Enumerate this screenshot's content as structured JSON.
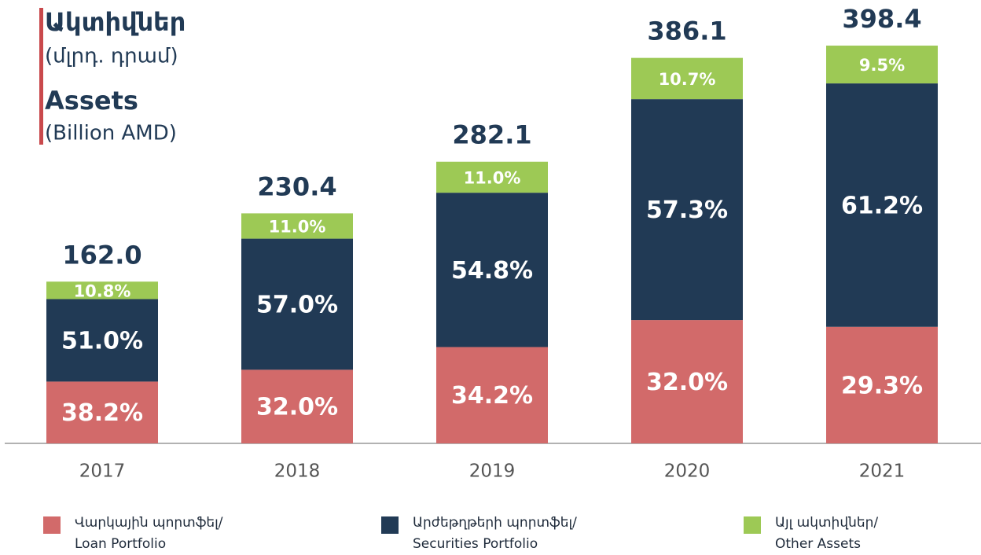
{
  "chart_data": {
    "type": "stacked_bar",
    "title": "Ակտիվներ",
    "subtitle": "(մլրդ. դրամ)",
    "title_en": "Assets",
    "subtitle_en": "(Billion AMD)",
    "categories": [
      "2017",
      "2018",
      "2019",
      "2020",
      "2021"
    ],
    "totals": {
      "values": [
        162.0,
        230.4,
        282.1,
        386.1,
        398.4
      ],
      "value_labels": [
        "162.0",
        "230.4",
        "282.1",
        "386.1",
        "398.4"
      ]
    },
    "series": [
      {
        "name": "Վարկային պորտֆել/\nLoan Portfolio",
        "color": "#d26a6a",
        "values": [
          38.2,
          32.0,
          34.2,
          32.0,
          29.3
        ],
        "value_labels": [
          "38.2%",
          "32.0%",
          "34.2%",
          "32.0%",
          "29.3%"
        ]
      },
      {
        "name": "Արժեթղթերի պորտֆել/\nSecurities Portfolio",
        "color": "#213a55",
        "values": [
          51.0,
          57.0,
          54.8,
          57.3,
          61.2
        ],
        "value_labels": [
          "51.0%",
          "57.0%",
          "54.8%",
          "57.3%",
          "61.2%"
        ]
      },
      {
        "name": "Այլ ակտիվներ/\nOther Assets",
        "color": "#9dc955",
        "values": [
          10.8,
          11.0,
          11.0,
          10.7,
          9.5
        ],
        "value_labels": [
          "10.8%",
          "11.0%",
          "11.0%",
          "10.7%",
          "9.5%"
        ]
      }
    ]
  }
}
